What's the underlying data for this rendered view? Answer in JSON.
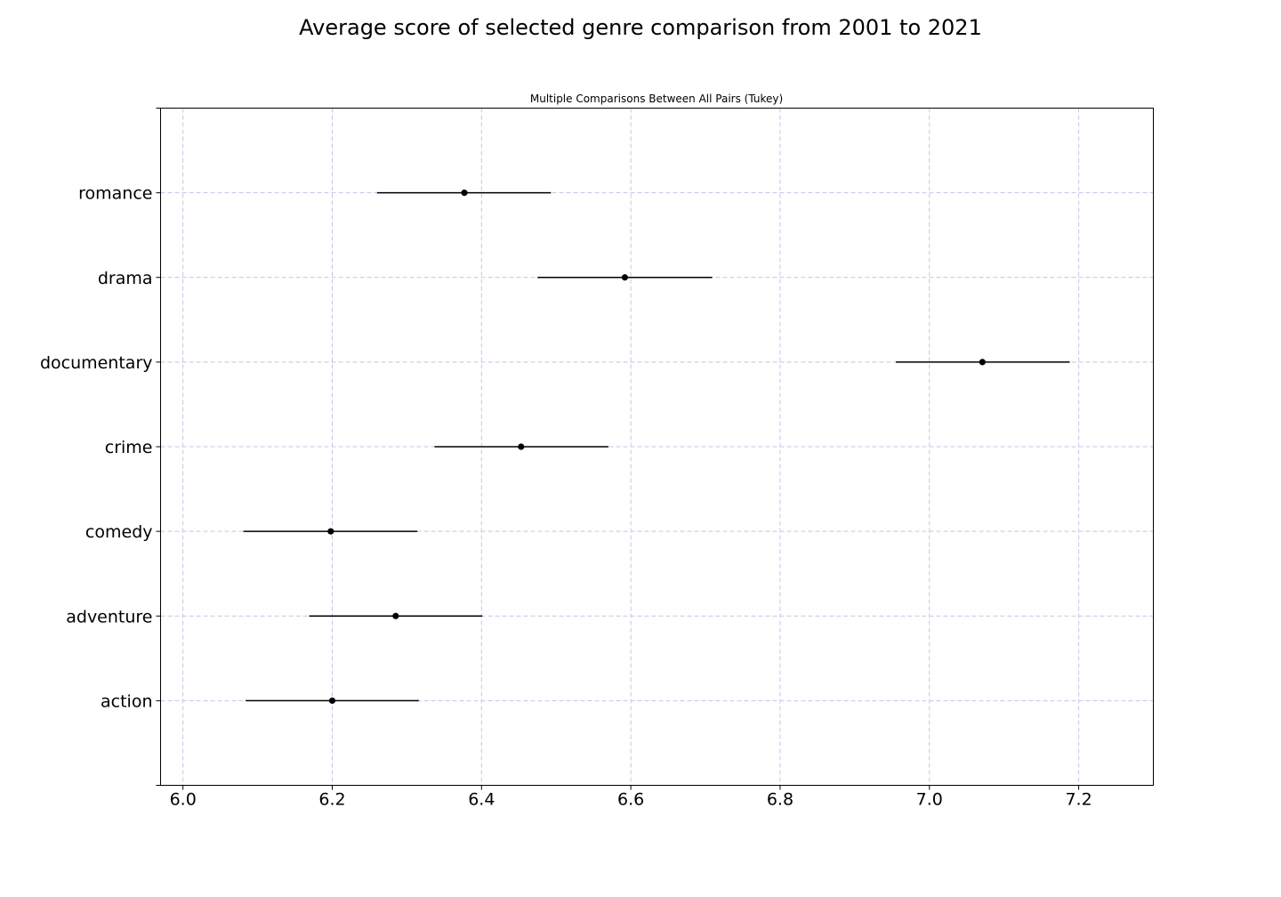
{
  "chart_data": {
    "type": "errorbar",
    "title": "Average score of selected genre comparison from 2001 to 2021",
    "subtitle": "Multiple Comparisons Between All Pairs (Tukey)",
    "xlabel": "",
    "ylabel": "",
    "xlim": [
      5.97,
      7.3
    ],
    "x_ticks": [
      6.0,
      6.2,
      6.4,
      6.6,
      6.8,
      7.0,
      7.2
    ],
    "x_tick_labels": [
      "6.0",
      "6.2",
      "6.4",
      "6.6",
      "6.8",
      "7.0",
      "7.2"
    ],
    "categories": [
      "romance",
      "drama",
      "documentary",
      "crime",
      "comedy",
      "adventure",
      "action"
    ],
    "means": [
      6.377,
      6.592,
      7.071,
      6.453,
      6.198,
      6.285,
      6.2
    ],
    "ci_low": [
      6.26,
      6.475,
      6.955,
      6.337,
      6.081,
      6.169,
      6.084
    ],
    "ci_high": [
      6.493,
      6.709,
      7.188,
      6.57,
      6.314,
      6.401,
      6.316
    ],
    "grid": true,
    "legend": "none",
    "colors": {
      "marker": "#000000",
      "grid": "#c8c4e6"
    }
  }
}
